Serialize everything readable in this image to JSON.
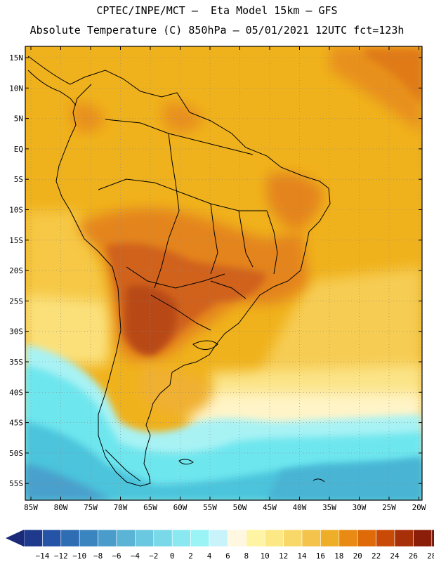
{
  "header": {
    "line1": "CPTEC/INPE/MCT –  Eta Model 15km – GFS",
    "line2": "Absolute Temperature (C) 850hPa – 05/01/2021 12UTC fct=123h"
  },
  "map": {
    "lat_labels": [
      "15N",
      "10N",
      "5N",
      "EQ",
      "5S",
      "10S",
      "15S",
      "20S",
      "25S",
      "30S",
      "35S",
      "40S",
      "45S",
      "50S",
      "55S"
    ],
    "lon_labels": [
      "85W",
      "80W",
      "75W",
      "70W",
      "65W",
      "60W",
      "55W",
      "50W",
      "45W",
      "40W",
      "35W",
      "30W",
      "25W",
      "20W"
    ]
  },
  "colorbar": {
    "labels": [
      "-14",
      "-12",
      "-10",
      "-8",
      "-6",
      "-4",
      "-2",
      "0",
      "2",
      "4",
      "6",
      "8",
      "10",
      "12",
      "14",
      "16",
      "18",
      "20",
      "22",
      "24",
      "26",
      "28"
    ],
    "colors": [
      "#1f3a8c",
      "#2553a6",
      "#2e6cb4",
      "#3a85c0",
      "#4a9dcb",
      "#5bb3d6",
      "#6ac8e0",
      "#7ad9e9",
      "#8ae8f0",
      "#9af4f6",
      "#c9f3fb",
      "#fff7e0",
      "#fff4a4",
      "#fde886",
      "#f9d86a",
      "#f4c34c",
      "#eeae28",
      "#e88a14",
      "#de6a08",
      "#c84a06",
      "#a83008",
      "#8a1e08",
      "#721408"
    ],
    "left_arrow_color": "#1a2a78",
    "right_arrow_color": "#6e0a10"
  }
}
